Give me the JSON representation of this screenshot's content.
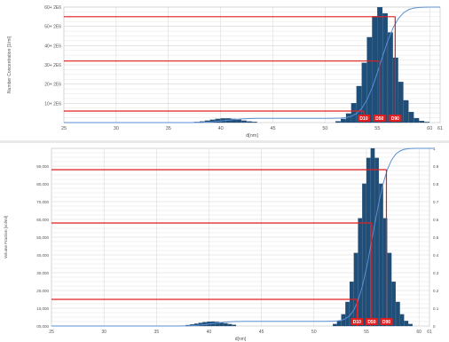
{
  "colors": {
    "bars": "#1f4e79",
    "cumulative_line": "#5b8fd4",
    "marker_lines": "#e02020",
    "marker_label_bg": "#e02020",
    "marker_label_text": "#ffffff",
    "grid": "#d4d4d4",
    "axis_text": "#555555"
  },
  "chart_data": [
    {
      "type": "bar",
      "panel": "top",
      "xlabel": "d[nm]",
      "ylabel": "Number Concentration [1/ml]",
      "xlim": [
        25,
        61
      ],
      "ylim": [
        0,
        60000000
      ],
      "x_ticks": [
        "25",
        "30",
        "35",
        "40",
        "45",
        "50",
        "55",
        "60",
        "61"
      ],
      "y_ticks": [
        "10+ 2E6",
        "20+ 2E6",
        "30+ 2E6",
        "40+ 2E6",
        "50+ 2E6",
        "60+ 2E6"
      ],
      "grid": true,
      "distribution": {
        "peaks": [
          {
            "center": 55.3,
            "sigma": 1.35,
            "height": 60000000
          },
          {
            "center": 40.5,
            "sigma": 1.4,
            "height": 2200000
          }
        ],
        "bin_width": 0.5,
        "x_start": 25,
        "x_end": 61
      },
      "cumulative": {
        "secondary_ylim": [
          0,
          1
        ]
      },
      "markers": [
        {
          "label": "D10",
          "x": 53.7,
          "y": 6000000
        },
        {
          "label": "D50",
          "x": 55.2,
          "y": 32000000
        },
        {
          "label": "D90",
          "x": 56.7,
          "y": 55000000
        }
      ]
    },
    {
      "type": "bar",
      "panel": "bottom",
      "xlabel": "d[nm]",
      "ylabel": "Volume Fraction [vol/ml]",
      "xlim": [
        25,
        61
      ],
      "ylim": [
        0,
        100000
      ],
      "x_ticks": [
        "25",
        "30",
        "35",
        "40",
        "45",
        "50",
        "55",
        "60",
        "61"
      ],
      "y_ticks": [
        "00,000",
        "10,000",
        "20,000",
        "30,000",
        "40,000",
        "50,000",
        "60,000",
        "70,000",
        "80,000",
        "90,000"
      ],
      "y2_ticks": [
        "0",
        "0.1",
        "0.2",
        "0.3",
        "0.4",
        "0.5",
        "0.6",
        "0.7",
        "0.8",
        "0.9",
        "1"
      ],
      "grid": true,
      "distribution": {
        "peaks": [
          {
            "center": 55.6,
            "sigma": 1.2,
            "height": 100000
          },
          {
            "center": 40.3,
            "sigma": 1.3,
            "height": 2500
          }
        ],
        "bin_width": 0.4,
        "x_start": 25,
        "x_end": 61
      },
      "cumulative": {
        "secondary_ylim": [
          0,
          1
        ]
      },
      "markers": [
        {
          "label": "D10",
          "x": 54.1,
          "y": 15000
        },
        {
          "label": "D50",
          "x": 55.5,
          "y": 58000
        },
        {
          "label": "D90",
          "x": 56.9,
          "y": 88000
        }
      ]
    }
  ]
}
